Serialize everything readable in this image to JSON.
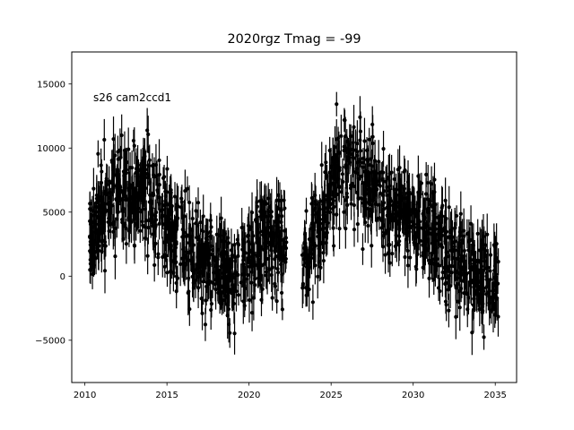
{
  "chart_data": {
    "type": "scatter",
    "title": "2020rgz Tmag = -99",
    "annotation": "s26 cam2ccd1",
    "xlabel": "",
    "ylabel": "",
    "xlim": [
      2009.2,
      2036.3
    ],
    "ylim": [
      -8300,
      17500
    ],
    "x_ticks": [
      2010,
      2015,
      2020,
      2025,
      2030,
      2035
    ],
    "x_tick_labels": [
      "2010",
      "2015",
      "2020",
      "2025",
      "2030",
      "2035"
    ],
    "y_ticks": [
      -5000,
      0,
      5000,
      10000,
      15000
    ],
    "y_tick_labels": [
      "−5000",
      "0",
      "5000",
      "10000",
      "15000"
    ],
    "grid": false,
    "legend": "none",
    "marker_color": "#000000",
    "marker": "point with vertical error bar",
    "gap": [
      2022.3,
      2023.2
    ],
    "trend": {
      "x": [
        2010.3,
        2011.0,
        2012.0,
        2013.0,
        2014.0,
        2015.0,
        2016.0,
        2017.0,
        2018.0,
        2019.0,
        2020.0,
        2021.0,
        2022.2,
        2023.2,
        2024.0,
        2025.0,
        2026.0,
        2027.0,
        2028.0,
        2029.0,
        2030.0,
        2031.0,
        2032.0,
        2033.0,
        2034.0,
        2035.2
      ],
      "y": [
        3000,
        5500,
        6500,
        7000,
        6200,
        4000,
        2500,
        1500,
        500,
        -300,
        1500,
        3000,
        2000,
        1000,
        3000,
        7000,
        8500,
        7500,
        6000,
        5000,
        4500,
        3500,
        2000,
        500,
        0,
        500
      ]
    },
    "scatter_std": 1900,
    "error_bar_typical": 1300,
    "n_points": 1600
  }
}
